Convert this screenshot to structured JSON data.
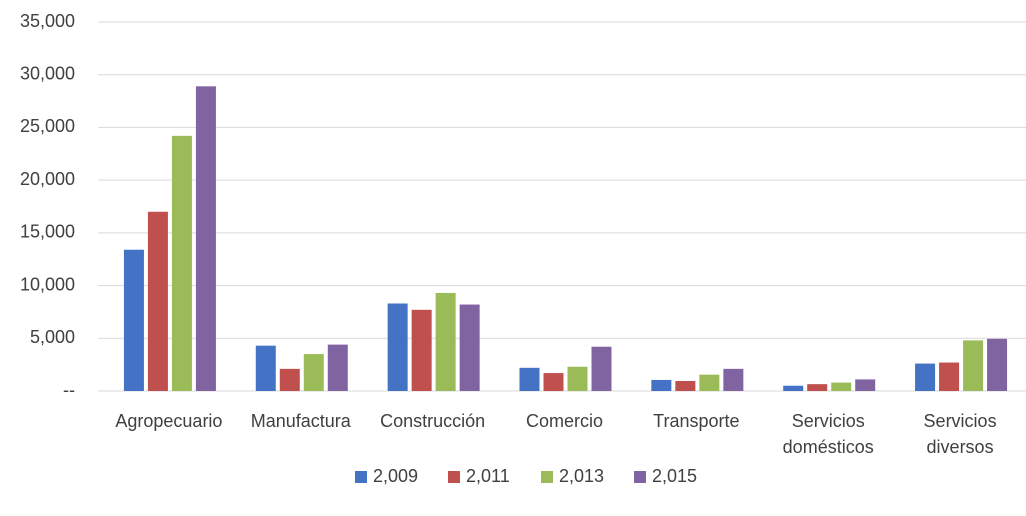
{
  "chart_data": {
    "type": "bar",
    "categories": [
      "Agropecuario",
      "Manufactura",
      "Construcción",
      "Comercio",
      "Transporte",
      "Servicios domésticos",
      "Servicios diversos"
    ],
    "series": [
      {
        "name": "2,009",
        "color": "#4472c4",
        "values": [
          13400,
          4300,
          8300,
          2200,
          1050,
          500,
          2600
        ]
      },
      {
        "name": "2,011",
        "color": "#c0504d",
        "values": [
          17000,
          2100,
          7700,
          1700,
          950,
          650,
          2700
        ]
      },
      {
        "name": "2,013",
        "color": "#9bbb59",
        "values": [
          24200,
          3500,
          9300,
          2300,
          1550,
          800,
          4800
        ]
      },
      {
        "name": "2,015",
        "color": "#8064a2",
        "values": [
          28900,
          4400,
          8200,
          4200,
          2100,
          1100,
          4950
        ]
      }
    ],
    "ylim": [
      0,
      35000
    ],
    "yticks": [
      {
        "value": 0,
        "label": "--"
      },
      {
        "value": 5000,
        "label": "5,000"
      },
      {
        "value": 10000,
        "label": "10,000"
      },
      {
        "value": 15000,
        "label": "15,000"
      },
      {
        "value": 20000,
        "label": "20,000"
      },
      {
        "value": 25000,
        "label": "25,000"
      },
      {
        "value": 30000,
        "label": "30,000"
      },
      {
        "value": 35000,
        "label": "35,000"
      }
    ],
    "grid": true,
    "legend": "bottom"
  }
}
